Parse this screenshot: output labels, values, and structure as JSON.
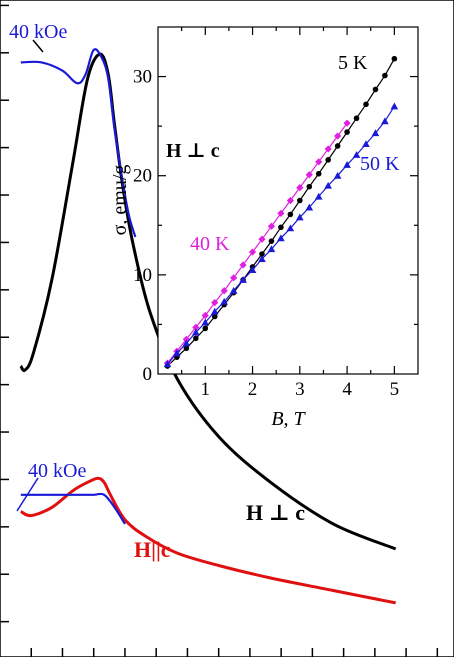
{
  "chart_data": [
    {
      "type": "line",
      "title": "",
      "xlabel": "",
      "ylabel": "",
      "annotations": [
        {
          "text": "40 kOe",
          "color": "#1a1ad6"
        },
        {
          "text": "40 kOe",
          "color": "#1a1ad6"
        },
        {
          "text": "H ⊥ c",
          "color": "#000000"
        },
        {
          "text": "H||c",
          "color": "#e01010"
        }
      ],
      "series": [
        {
          "color": "#000000",
          "x": [
            1.0,
            1.2,
            1.6,
            2.5,
            3.5,
            4.2,
            4.8,
            5.2,
            5.5,
            5.9,
            6.4,
            7.2,
            8.5,
            10.5,
            13.0,
            16.0,
            19.0
          ],
          "y": [
            7.0,
            6.9,
            7.3,
            9.1,
            11.9,
            13.9,
            14.5,
            14.0,
            12.8,
            11.3,
            9.9,
            8.3,
            6.7,
            5.3,
            4.2,
            3.2,
            2.6
          ]
        },
        {
          "color": "#1a1ad6",
          "x": [
            1.0,
            2.0,
            3.0,
            3.7,
            4.1,
            4.5,
            4.9,
            5.2,
            5.5,
            5.9,
            6.2,
            6.5
          ],
          "y": [
            14.3,
            14.3,
            14.1,
            13.8,
            14.0,
            14.6,
            14.4,
            13.9,
            12.7,
            11.4,
            10.6,
            10.1
          ]
        },
        {
          "color": "#e01010",
          "x": [
            1.0,
            1.5,
            2.5,
            3.5,
            4.2,
            4.7,
            5.0,
            5.3,
            6.0,
            7.0,
            8.5,
            10.5,
            13.0,
            16.0,
            19.0
          ],
          "y": [
            3.5,
            3.4,
            3.6,
            4.0,
            4.2,
            4.3,
            4.2,
            3.9,
            3.3,
            2.9,
            2.5,
            2.2,
            1.9,
            1.6,
            1.3
          ]
        },
        {
          "color": "#1a1ad6",
          "x": [
            1.0,
            2.0,
            3.0,
            4.0,
            4.5,
            5.0,
            5.5,
            6.0
          ],
          "y": [
            3.9,
            3.9,
            3.9,
            3.9,
            3.9,
            3.9,
            3.6,
            3.2
          ]
        }
      ]
    },
    {
      "type": "scatter",
      "title": "",
      "xlabel": "B, T",
      "ylabel": "σ, emu/g",
      "xlim": [
        0,
        5.5
      ],
      "ylim": [
        0,
        35
      ],
      "xticks": [
        1,
        2,
        3,
        4,
        5
      ],
      "yticks": [
        0,
        10,
        20,
        30
      ],
      "annotation": "H ⊥ c",
      "series": [
        {
          "name": "5 K",
          "color": "#000000",
          "marker": "circle",
          "x": [
            0.2,
            0.4,
            0.6,
            0.8,
            1.0,
            1.2,
            1.4,
            1.6,
            1.8,
            2.0,
            2.2,
            2.4,
            2.6,
            2.8,
            3.0,
            3.2,
            3.4,
            3.6,
            3.8,
            4.0,
            4.2,
            4.4,
            4.6,
            4.8,
            5.0
          ],
          "y": [
            0.8,
            1.7,
            2.6,
            3.6,
            4.6,
            5.8,
            7.0,
            8.2,
            9.5,
            10.8,
            12.1,
            13.4,
            14.8,
            16.1,
            17.5,
            18.9,
            20.2,
            21.6,
            23.0,
            24.4,
            25.8,
            27.2,
            28.7,
            30.1,
            31.8
          ]
        },
        {
          "name": "40 K",
          "color": "#e020e0",
          "marker": "diamond",
          "x": [
            0.2,
            0.4,
            0.6,
            0.8,
            1.0,
            1.2,
            1.4,
            1.6,
            1.8,
            2.0,
            2.2,
            2.4,
            2.6,
            2.8,
            3.0,
            3.2,
            3.4,
            3.6,
            3.8,
            4.0
          ],
          "y": [
            1.1,
            2.3,
            3.5,
            4.7,
            5.9,
            7.2,
            8.4,
            9.7,
            11.0,
            12.3,
            13.6,
            14.9,
            16.2,
            17.5,
            18.8,
            20.1,
            21.4,
            22.7,
            24.0,
            25.3
          ]
        },
        {
          "name": "50 K",
          "color": "#1a1ad6",
          "marker": "triangle",
          "x": [
            0.2,
            0.4,
            0.6,
            0.8,
            1.0,
            1.2,
            1.4,
            1.6,
            1.8,
            2.0,
            2.2,
            2.4,
            2.6,
            2.8,
            3.0,
            3.2,
            3.4,
            3.6,
            3.8,
            4.0,
            4.2,
            4.4,
            4.6,
            4.8,
            5.0
          ],
          "y": [
            1.0,
            2.1,
            3.1,
            4.2,
            5.2,
            6.3,
            7.3,
            8.4,
            9.5,
            10.5,
            11.6,
            12.6,
            13.7,
            14.7,
            15.8,
            16.8,
            17.9,
            19.0,
            20.0,
            21.1,
            22.1,
            23.2,
            24.3,
            25.5,
            27.0
          ]
        }
      ]
    }
  ]
}
